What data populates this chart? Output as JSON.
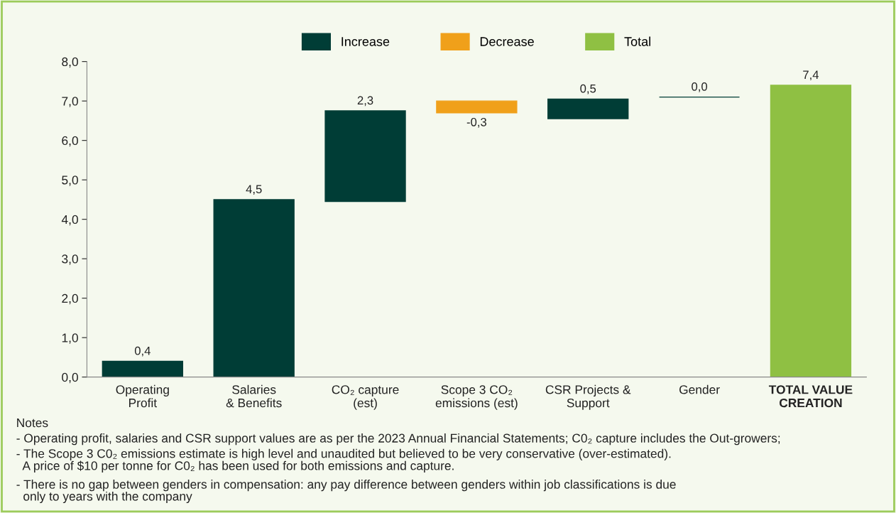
{
  "chart_data": {
    "type": "bar",
    "categories": [
      "Operating\nProfit",
      "Salaries\n& Benefits",
      "CO₂ capture\n(est)",
      "Scope 3 CO₂\nemissions (est)",
      "CSR Projects &\nSupport",
      "Gender",
      "TOTAL VALUE\nCREATION"
    ],
    "series": [
      {
        "name": "Increase",
        "color": "#003d36",
        "values": [
          0.4,
          4.5,
          2.3,
          null,
          0.5,
          0.0,
          null
        ],
        "base": [
          0,
          0,
          4.45,
          null,
          6.55,
          7.1,
          null
        ],
        "value_labels": [
          "0,4",
          "4,5",
          "2,3",
          null,
          "0,5",
          "0,0",
          null
        ]
      },
      {
        "name": "Decrease",
        "color": "#f0a01a",
        "values": [
          null,
          null,
          null,
          -0.3,
          null,
          null,
          null
        ],
        "base": [
          null,
          null,
          null,
          7.0,
          null,
          null,
          null
        ],
        "value_labels": [
          null,
          null,
          null,
          "-0,3",
          null,
          null,
          null
        ]
      },
      {
        "name": "Total",
        "color": "#8fc043",
        "values": [
          null,
          null,
          null,
          null,
          null,
          null,
          7.4
        ],
        "base": [
          null,
          null,
          null,
          null,
          null,
          null,
          0
        ],
        "value_labels": [
          null,
          null,
          null,
          null,
          null,
          null,
          "7,4"
        ]
      }
    ],
    "ylim": [
      0,
      8
    ],
    "yticks": [
      {
        "value": 0,
        "label": "0,0"
      },
      {
        "value": 1,
        "label": "1,0"
      },
      {
        "value": 2,
        "label": "2,0"
      },
      {
        "value": 3,
        "label": "3,0"
      },
      {
        "value": 4,
        "label": "4,0"
      },
      {
        "value": 5,
        "label": "5,0"
      },
      {
        "value": 6,
        "label": "6,0"
      },
      {
        "value": 7,
        "label": "7,0"
      },
      {
        "value": 8,
        "label": "8,0"
      }
    ],
    "grid": false,
    "legend": "top",
    "annotations": [
      "Notes",
      "- Operating profit, salaries and CSR support values are as per the 2023 Annual Financial Statements; C0₂ capture includes the Out-growers;",
      "- The Scope 3 C0₂ emissions estimate is high level and unaudited but believed to be very conservative (over-estimated).\n  A price of $10 per tonne for C0₂ has been used for both emissions and capture.",
      "- There is no gap between genders in compensation: any pay difference between genders within job classifications is due\n  only to years with the company"
    ]
  }
}
